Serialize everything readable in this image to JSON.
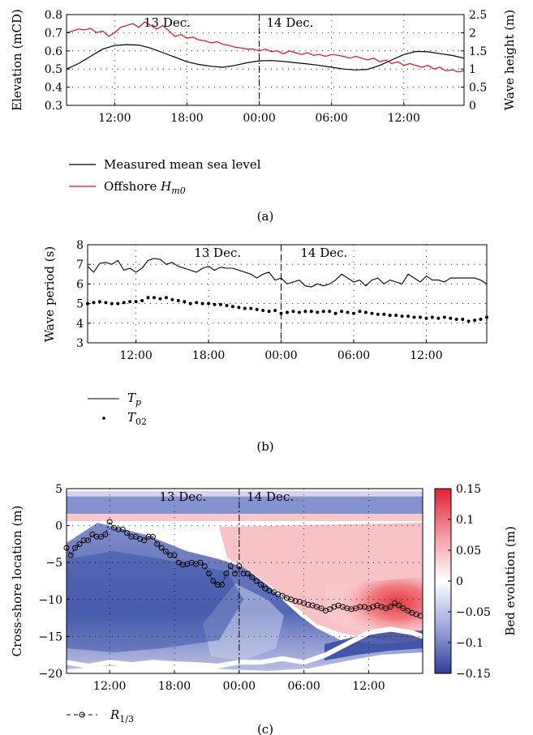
{
  "colors": {
    "msl": "#000000",
    "hm0": "#e0101a",
    "cbar_low": "#2b3f9a",
    "cbar_mid": "#ffffff",
    "cbar_high": "#e02030"
  },
  "panels": [
    {
      "caption": "(a)",
      "chart_data": {
        "type": "line",
        "ylabel": "Elevation (mCD)",
        "y2label": "Wave height (m)",
        "ylim": [
          0.3,
          0.8
        ],
        "y2lim": [
          0,
          2.5
        ],
        "yticks": [
          "0.8",
          "0.7",
          "0.6",
          "0.5",
          "0.4",
          "0.3"
        ],
        "y2ticks": [
          "2.5",
          "2",
          "1.5",
          "1",
          "0.5",
          "0"
        ],
        "xlim": [
          8.0,
          41.0
        ],
        "xticks": [
          {
            "x": 12,
            "label": "12:00"
          },
          {
            "x": 18,
            "label": "18:00"
          },
          {
            "x": 24,
            "label": "00:00"
          },
          {
            "x": 30,
            "label": "06:00"
          },
          {
            "x": 36,
            "label": "12:00"
          }
        ],
        "grid": true,
        "day_divider": 24,
        "annotations": [
          {
            "x": 14.4,
            "label": "13 Dec."
          },
          {
            "x": 24.6,
            "label": "14 Dec."
          }
        ],
        "legend": {
          "placement": "below",
          "entries": [
            {
              "name": "Measured mean sea level",
              "style": "line",
              "color": "#000000"
            },
            {
              "name": "Offshore Hm0",
              "display": [
                "Offshore ",
                "H",
                "m0"
              ],
              "style": "line",
              "color": "#e0101a"
            }
          ]
        },
        "series": [
          {
            "name": "Measured mean sea level",
            "axis": "left",
            "color": "#000000",
            "x": [
              8,
              9,
              10,
              11,
              12,
              13,
              14,
              15,
              16,
              17,
              18,
              19,
              20,
              21,
              22,
              23,
              24,
              25,
              26,
              27,
              28,
              29,
              30,
              31,
              32,
              33,
              34,
              35,
              36,
              37,
              38,
              39,
              40,
              41
            ],
            "y": [
              0.5,
              0.53,
              0.57,
              0.61,
              0.63,
              0.635,
              0.632,
              0.615,
              0.59,
              0.565,
              0.54,
              0.525,
              0.515,
              0.51,
              0.52,
              0.535,
              0.545,
              0.547,
              0.542,
              0.535,
              0.528,
              0.52,
              0.51,
              0.5,
              0.495,
              0.498,
              0.52,
              0.55,
              0.58,
              0.597,
              0.595,
              0.585,
              0.575,
              0.56
            ]
          },
          {
            "name": "Offshore Hm0",
            "axis": "right",
            "color": "#e0101a",
            "x": [
              8,
              8.5,
              9,
              9.5,
              10,
              10.5,
              11,
              11.5,
              12,
              12.5,
              13,
              13.5,
              14,
              14.5,
              15,
              15.5,
              16,
              16.5,
              17,
              17.5,
              18,
              18.5,
              19,
              19.5,
              20,
              20.5,
              21,
              21.5,
              22,
              22.5,
              23,
              23.5,
              24,
              24.5,
              25,
              25.5,
              26,
              26.5,
              27,
              27.5,
              28,
              28.5,
              29,
              29.5,
              30,
              30.5,
              31,
              31.5,
              32,
              32.5,
              33,
              33.5,
              34,
              34.5,
              35,
              35.5,
              36,
              36.5,
              37,
              37.5,
              38,
              38.5,
              39,
              39.5,
              40,
              40.5,
              41
            ],
            "y": [
              2.0,
              2.05,
              2.1,
              2.08,
              2.12,
              2.0,
              2.05,
              1.9,
              2.0,
              2.15,
              2.2,
              2.25,
              2.15,
              2.3,
              2.2,
              2.1,
              2.2,
              2.05,
              1.9,
              1.95,
              1.85,
              1.88,
              1.8,
              1.78,
              1.72,
              1.75,
              1.68,
              1.65,
              1.6,
              1.58,
              1.55,
              1.55,
              1.5,
              1.55,
              1.48,
              1.5,
              1.42,
              1.5,
              1.45,
              1.4,
              1.45,
              1.38,
              1.4,
              1.35,
              1.4,
              1.38,
              1.35,
              1.3,
              1.35,
              1.3,
              1.25,
              1.3,
              1.2,
              1.25,
              1.15,
              1.2,
              1.1,
              1.15,
              1.1,
              1.05,
              1.1,
              1.0,
              1.05,
              0.95,
              0.98,
              0.92,
              0.95
            ]
          }
        ]
      }
    },
    {
      "caption": "(b)",
      "chart_data": {
        "type": "line",
        "ylabel": "Wave period (s)",
        "ylim": [
          3,
          8
        ],
        "yticks": [
          "8",
          "7",
          "6",
          "5",
          "4",
          "3"
        ],
        "xlim": [
          8.0,
          41.0
        ],
        "xticks": [
          {
            "x": 12,
            "label": "12:00"
          },
          {
            "x": 18,
            "label": "18:00"
          },
          {
            "x": 24,
            "label": "00:00"
          },
          {
            "x": 30,
            "label": "06:00"
          },
          {
            "x": 36,
            "label": "12:00"
          }
        ],
        "grid": true,
        "day_divider": 24,
        "annotations": [
          {
            "x": 16.8,
            "label": "13 Dec."
          },
          {
            "x": 25.6,
            "label": "14 Dec."
          }
        ],
        "legend": {
          "placement": "below",
          "entries": [
            {
              "name": "Tp",
              "display": [
                "",
                "T",
                "p"
              ],
              "style": "line",
              "color": "#000000"
            },
            {
              "name": "T02",
              "display": [
                "",
                "T",
                "02"
              ],
              "style": "dots",
              "color": "#000000"
            }
          ]
        },
        "series": [
          {
            "name": "Tp",
            "style": "line",
            "color": "#000000",
            "x": [
              8,
              8.5,
              9,
              9.5,
              10,
              10.5,
              11,
              11.5,
              12,
              12.5,
              13,
              13.5,
              14,
              14.5,
              15,
              15.5,
              16,
              16.5,
              17,
              17.5,
              18,
              18.5,
              19,
              19.5,
              20,
              20.5,
              21,
              21.5,
              22,
              22.5,
              23,
              23.5,
              24,
              24.5,
              25,
              25.5,
              26,
              26.5,
              27,
              27.5,
              28,
              28.5,
              29,
              29.5,
              30,
              30.5,
              31,
              31.5,
              32,
              32.5,
              33,
              33.5,
              34,
              34.5,
              35,
              35.5,
              36,
              36.5,
              37,
              37.5,
              38,
              38.5,
              39,
              39.5,
              40,
              40.5,
              41
            ],
            "y": [
              6.9,
              6.6,
              7.05,
              7.1,
              7.0,
              7.2,
              6.7,
              6.8,
              6.6,
              6.8,
              7.2,
              7.3,
              7.25,
              7.0,
              7.1,
              6.9,
              6.8,
              6.7,
              6.6,
              6.8,
              6.9,
              6.7,
              6.85,
              6.8,
              6.8,
              6.7,
              6.6,
              6.5,
              6.3,
              6.5,
              6.6,
              6.2,
              6.3,
              6.0,
              6.1,
              6.2,
              5.9,
              5.85,
              6.0,
              5.9,
              6.0,
              6.2,
              6.5,
              6.3,
              6.1,
              6.2,
              5.9,
              6.2,
              6.3,
              6.0,
              6.2,
              6.1,
              6.0,
              6.5,
              6.3,
              6.1,
              6.4,
              6.2,
              6.2,
              6.1,
              6.3,
              6.3,
              6.3,
              6.3,
              6.3,
              6.2,
              6.0
            ]
          },
          {
            "name": "T02",
            "style": "dots",
            "color": "#000000",
            "x": [
              8,
              8.5,
              9,
              9.5,
              10,
              10.5,
              11,
              11.5,
              12,
              12.5,
              13,
              13.5,
              14,
              14.5,
              15,
              15.5,
              16,
              16.5,
              17,
              17.5,
              18,
              18.5,
              19,
              19.5,
              20,
              20.5,
              21,
              21.5,
              22,
              22.5,
              23,
              23.5,
              24,
              24.5,
              25,
              25.5,
              26,
              26.5,
              27,
              27.5,
              28,
              28.5,
              29,
              29.5,
              30,
              30.5,
              31,
              31.5,
              32,
              32.5,
              33,
              33.5,
              34,
              34.5,
              35,
              35.5,
              36,
              36.5,
              37,
              37.5,
              38,
              38.5,
              39,
              39.5,
              40,
              40.5,
              41
            ],
            "y": [
              5.0,
              5.05,
              5.1,
              5.05,
              5.0,
              5.0,
              5.05,
              5.1,
              5.1,
              5.15,
              5.3,
              5.3,
              5.25,
              5.3,
              5.2,
              5.15,
              5.1,
              5.0,
              5.05,
              5.0,
              5.0,
              4.95,
              4.95,
              4.9,
              4.85,
              4.8,
              4.75,
              4.75,
              4.7,
              4.65,
              4.6,
              4.65,
              4.5,
              4.55,
              4.6,
              4.55,
              4.6,
              4.6,
              4.55,
              4.6,
              4.6,
              4.5,
              4.6,
              4.55,
              4.5,
              4.6,
              4.55,
              4.5,
              4.45,
              4.45,
              4.4,
              4.4,
              4.35,
              4.35,
              4.3,
              4.3,
              4.25,
              4.3,
              4.25,
              4.3,
              4.25,
              4.2,
              4.2,
              4.1,
              4.15,
              4.2,
              4.3
            ]
          }
        ]
      }
    },
    {
      "caption": "(c)",
      "chart_data": {
        "type": "heatmap",
        "ylabel": "Cross-shore location (m)",
        "cbar_label": "Bed evolution (m)",
        "ylim": [
          -20,
          5
        ],
        "yticks": [
          "5",
          "0",
          "−5",
          "−10",
          "−15",
          "−20"
        ],
        "clim": [
          -0.15,
          0.15
        ],
        "cbar_ticks": [
          "0.15",
          "0.1",
          "0.05",
          "0",
          "−0.05",
          "−0.1",
          "−0.15"
        ],
        "xlim": [
          8.0,
          41.0
        ],
        "xticks": [
          {
            "x": 12,
            "label": "12:00"
          },
          {
            "x": 18,
            "label": "18:00"
          },
          {
            "x": 24,
            "label": "00:00"
          },
          {
            "x": 30,
            "label": "06:00"
          },
          {
            "x": 36,
            "label": "12:00"
          }
        ],
        "grid": true,
        "day_divider": 24,
        "annotations": [
          {
            "x": 16.6,
            "label": "13 Dec."
          },
          {
            "x": 24.7,
            "label": "14 Dec."
          }
        ],
        "legend": {
          "placement": "below",
          "entries": [
            {
              "name": "R1/3",
              "display": [
                "",
                "R",
                "1/3"
              ],
              "style": "dash-circle",
              "color": "#000000"
            }
          ]
        },
        "series": [
          {
            "name": "R1/3",
            "style": "dash-circle",
            "color": "#000000",
            "x": [
              8,
              8.4,
              8.8,
              9.2,
              9.6,
              10,
              10.4,
              10.8,
              11.2,
              11.6,
              12,
              12.4,
              12.8,
              13.2,
              13.6,
              14,
              14.4,
              14.8,
              15.2,
              15.6,
              16,
              16.4,
              16.8,
              17.2,
              17.6,
              18,
              18.4,
              18.8,
              19.2,
              19.6,
              20,
              20.4,
              20.8,
              21.2,
              21.6,
              22,
              22.4,
              22.8,
              23.2,
              23.6,
              24,
              24.4,
              24.8,
              25.2,
              25.6,
              26,
              26.4,
              26.8,
              27.2,
              27.6,
              28,
              28.4,
              28.8,
              29.2,
              29.6,
              30,
              30.4,
              30.8,
              31.2,
              31.6,
              32,
              32.4,
              32.8,
              33.2,
              33.6,
              34,
              34.4,
              34.8,
              35.2,
              35.6,
              36,
              36.4,
              36.8,
              37.2,
              37.6,
              38,
              38.4,
              38.8,
              39.2,
              39.6,
              40,
              40.4,
              40.8
            ],
            "y": [
              -3.0,
              -4.0,
              -3.0,
              -2.5,
              -2.0,
              -2.0,
              -1.2,
              -1.5,
              -1.5,
              -1.2,
              0.5,
              -0.3,
              -0.5,
              -0.5,
              -1.0,
              -1.5,
              -1.5,
              -1.8,
              -2.0,
              -1.5,
              -1.5,
              -2.5,
              -3.0,
              -3.5,
              -4.0,
              -4.0,
              -5.0,
              -5.3,
              -5.2,
              -5.0,
              -5.2,
              -5.0,
              -5.5,
              -6.5,
              -7.5,
              -8.0,
              -8.0,
              -6.5,
              -5.5,
              -6.5,
              -5.5,
              -6.5,
              -6.5,
              -7.0,
              -7.5,
              -8.0,
              -8.5,
              -8.8,
              -9.0,
              -9.3,
              -9.5,
              -9.8,
              -10.0,
              -10.2,
              -10.3,
              -10.5,
              -10.7,
              -10.8,
              -11.0,
              -11.2,
              -11.5,
              -11.3,
              -11.0,
              -10.8,
              -11.0,
              -11.2,
              -11.3,
              -11.2,
              -11.0,
              -11.0,
              -11.2,
              -11.0,
              -10.8,
              -11.0,
              -11.2,
              -11.0,
              -10.5,
              -10.8,
              -11.2,
              -11.5,
              -11.8,
              -12.0,
              -12.2
            ]
          },
          {
            "name": "upper erosion band",
            "role": "field",
            "x": [
              8,
              41
            ],
            "ymin": 1.2,
            "ymax": 4.0,
            "value": -0.12
          },
          {
            "name": "upper accretion band",
            "role": "field",
            "x": [
              8,
              41
            ],
            "ymin": 0.0,
            "ymax": 1.2,
            "value": 0.05
          },
          {
            "name": "offshore boundary",
            "role": "field",
            "x": [
              8,
              10,
              12,
              14,
              16,
              18,
              20,
              22,
              24,
              26,
              28,
              30,
              32,
              34,
              36,
              38,
              40,
              41
            ],
            "y": [
              -18.5,
              -19,
              -18.5,
              -18.8,
              -18.5,
              -18.7,
              -18.8,
              -19,
              -18.5,
              -18.5,
              -18.0,
              -18.5,
              -17.5,
              -16.0,
              -14.5,
              -14.0,
              -14.5,
              -15.0
            ]
          }
        ]
      }
    }
  ]
}
